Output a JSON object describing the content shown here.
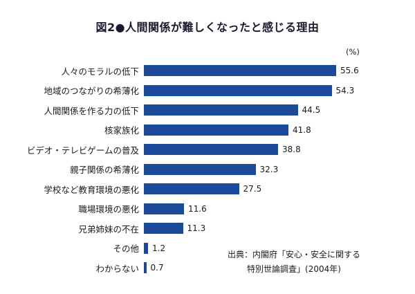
{
  "title": "図2●人間関係が難しくなったと感じる理由",
  "unit_label": "(%)",
  "source": {
    "line1": "出典：内閣府「安心・安全に関する",
    "line2": "特別世論調査」(2004年)"
  },
  "colors": {
    "bar": "#1b4a9a",
    "text": "#1a1a1a",
    "background": "#ffffff"
  },
  "chart_data": {
    "type": "bar",
    "orientation": "horizontal",
    "title": "図2●人間関係が難しくなったと感じる理由",
    "unit": "%",
    "categories": [
      "人々のモラルの低下",
      "地域のつながりの希薄化",
      "人間関係を作る力の低下",
      "核家族化",
      "ビデオ・テレビゲームの普及",
      "親子関係の希薄化",
      "学校など教育環境の悪化",
      "職場環境の悪化",
      "兄弟姉妹の不在",
      "その他",
      "わからない"
    ],
    "values": [
      55.6,
      54.3,
      44.5,
      41.8,
      38.8,
      32.3,
      27.5,
      11.6,
      11.3,
      1.2,
      0.7
    ],
    "xlim": [
      0,
      60
    ],
    "grid": false,
    "legend": "none",
    "source": "出典：内閣府「安心・安全に関する特別世論調査」(2004年)"
  }
}
